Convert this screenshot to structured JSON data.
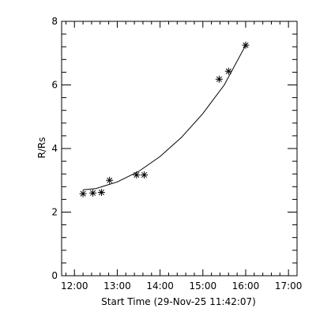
{
  "chart_data": {
    "type": "scatter",
    "xlabel": "Start Time (29-Nov-25 11:42:07)",
    "ylabel": "R/Rs",
    "x_tick_labels": [
      "12:00",
      "13:00",
      "14:00",
      "15:00",
      "16:00",
      "17:00"
    ],
    "x_tick_values": [
      12.0,
      13.0,
      14.0,
      15.0,
      16.0,
      17.0
    ],
    "x_minor_step": 0.2,
    "xlim": [
      11.7,
      17.2
    ],
    "y_tick_labels": [
      "0",
      "2",
      "4",
      "6",
      "8"
    ],
    "y_tick_values": [
      0,
      2,
      4,
      6,
      8
    ],
    "y_minor_step": 0.4,
    "ylim": [
      0,
      8
    ],
    "grid": false,
    "marker": "asterisk",
    "points": [
      {
        "x": 12.2,
        "y": 2.58
      },
      {
        "x": 12.43,
        "y": 2.6
      },
      {
        "x": 12.63,
        "y": 2.62
      },
      {
        "x": 12.82,
        "y": 3.0
      },
      {
        "x": 13.45,
        "y": 3.17
      },
      {
        "x": 13.63,
        "y": 3.17
      },
      {
        "x": 15.38,
        "y": 6.18
      },
      {
        "x": 15.6,
        "y": 6.43
      },
      {
        "x": 16.0,
        "y": 7.25
      }
    ],
    "fit_curve": [
      {
        "x": 12.2,
        "y": 2.7
      },
      {
        "x": 12.5,
        "y": 2.74
      },
      {
        "x": 13.0,
        "y": 2.95
      },
      {
        "x": 13.5,
        "y": 3.28
      },
      {
        "x": 14.0,
        "y": 3.75
      },
      {
        "x": 14.5,
        "y": 4.35
      },
      {
        "x": 15.0,
        "y": 5.1
      },
      {
        "x": 15.5,
        "y": 6.0
      },
      {
        "x": 16.0,
        "y": 7.25
      }
    ]
  }
}
